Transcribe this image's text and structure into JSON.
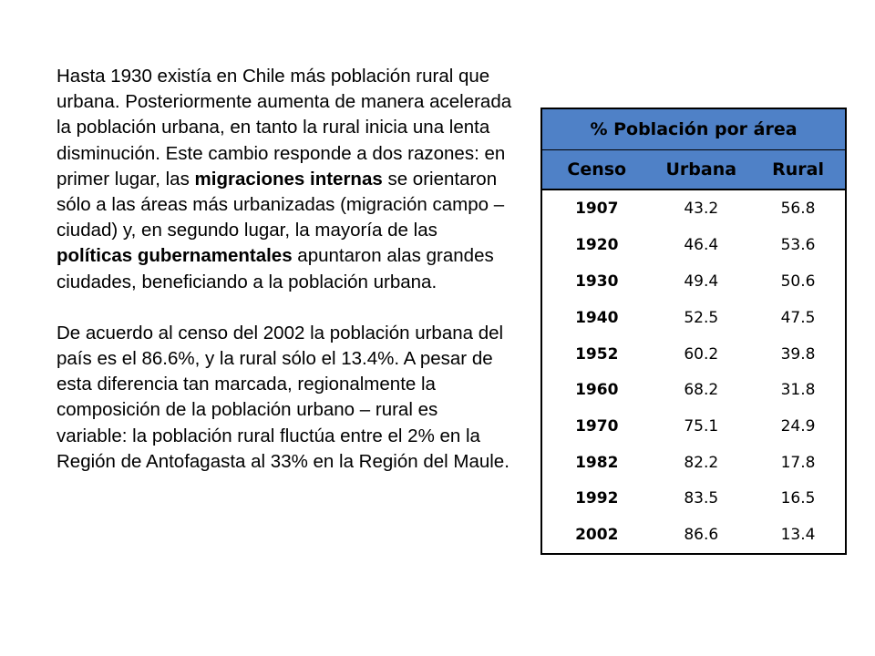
{
  "paragraphs": [
    [
      {
        "text": "Hasta 1930 existía en Chile más población rural que urbana. Posteriormente aumenta de manera acelerada la población urbana, en tanto la rural inicia una lenta disminución. Este cambio responde a dos razones: en primer lugar, las ",
        "bold": false
      },
      {
        "text": "migraciones internas",
        "bold": true
      },
      {
        "text": " se orientaron sólo a las áreas más urbanizadas (migración campo – ciudad) y, en segundo lugar, la mayoría de las ",
        "bold": false
      },
      {
        "text": "políticas gubernamentales",
        "bold": true
      },
      {
        "text": " apuntaron alas grandes ciudades, beneficiando a la población urbana.",
        "bold": false
      }
    ],
    [
      {
        "text": "De acuerdo al censo del 2002 la población urbana del país es el 86.6%, y la rural sólo el 13.4%. A pesar de esta diferencia tan marcada, regionalmente la composición de la población urbano – rural es variable: la población rural fluctúa entre el 2% en la Región de Antofagasta al 33% en la Región del Maule.",
        "bold": false
      }
    ]
  ],
  "table": {
    "title": "% Población por área",
    "header_color": "#4f81c7",
    "columns": [
      "Censo",
      "Urbana",
      "Rural"
    ],
    "rows": [
      [
        "1907",
        "43.2",
        "56.8"
      ],
      [
        "1920",
        "46.4",
        "53.6"
      ],
      [
        "1930",
        "49.4",
        "50.6"
      ],
      [
        "1940",
        "52.5",
        "47.5"
      ],
      [
        "1952",
        "60.2",
        "39.8"
      ],
      [
        "1960",
        "68.2",
        "31.8"
      ],
      [
        "1970",
        "75.1",
        "24.9"
      ],
      [
        "1982",
        "82.2",
        "17.8"
      ],
      [
        "1992",
        "83.5",
        "16.5"
      ],
      [
        "2002",
        "86.6",
        "13.4"
      ]
    ]
  }
}
